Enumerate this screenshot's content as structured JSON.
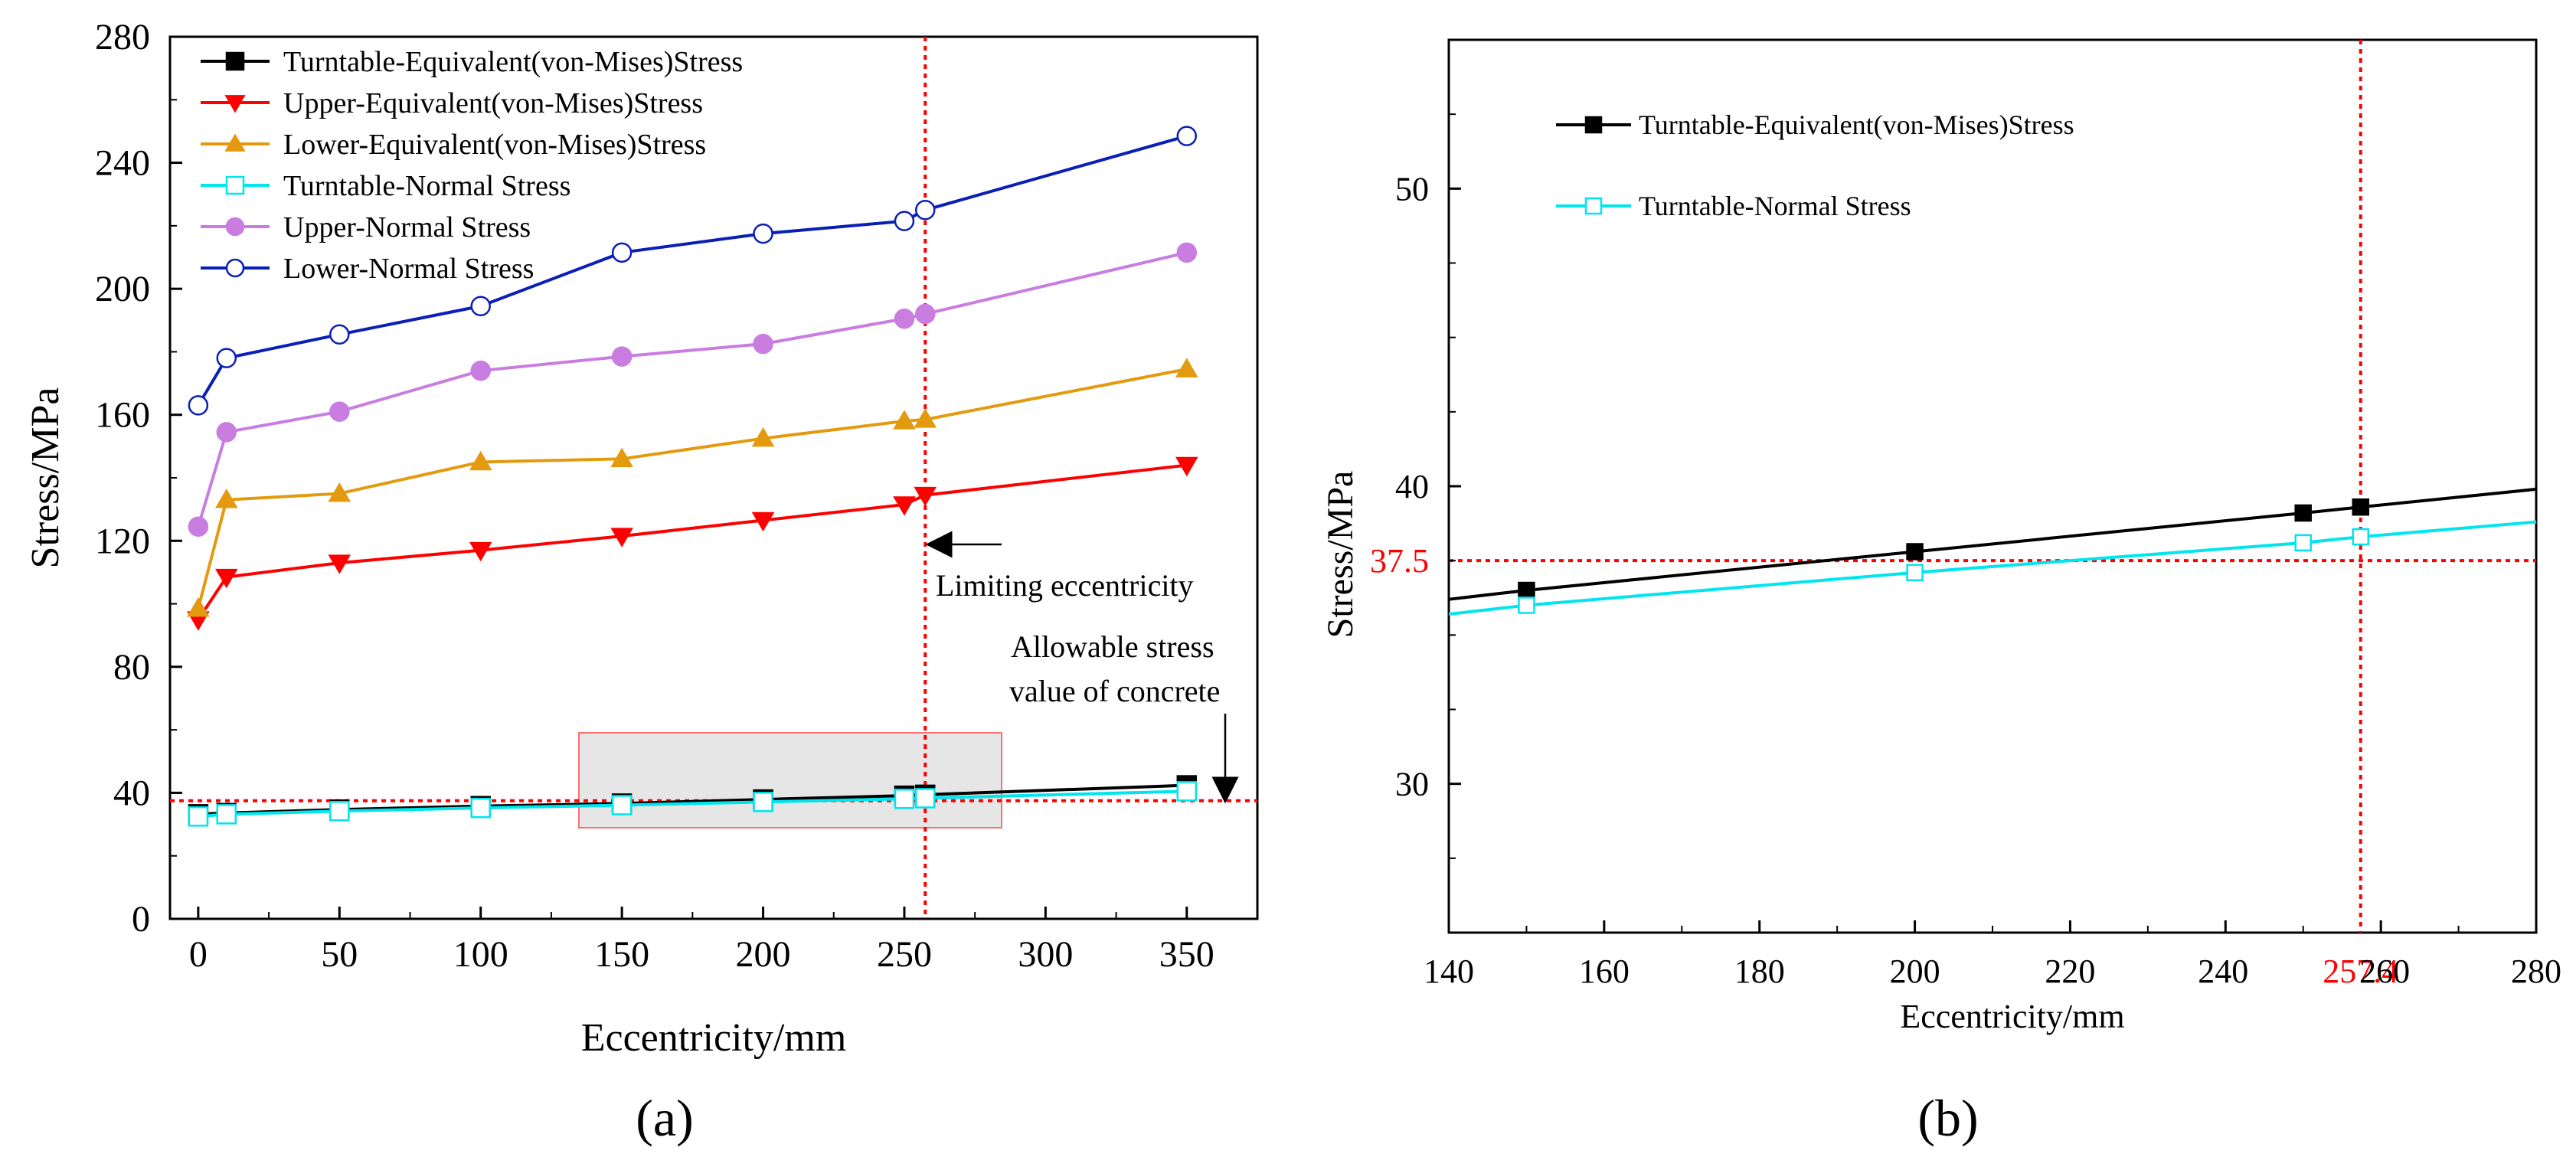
{
  "colors": {
    "turntable_equivalent": "#000000",
    "upper_equivalent": "#ff0000",
    "lower_equivalent": "#e39a0f",
    "turntable_normal": "#00e5ee",
    "upper_normal": "#c97de0",
    "lower_normal": "#0a1fb5",
    "reference_line": "#ff0000",
    "highlight_box_fill": "#dcdcdc",
    "highlight_box_stroke": "#ff7070"
  },
  "chart_data": [
    {
      "panel_label": "(a)",
      "type": "line",
      "xlabel": "Eccentricity/mm",
      "ylabel": "Stress/MPa",
      "xlim": [
        -10,
        375
      ],
      "ylim": [
        0,
        280
      ],
      "xticks": [
        0,
        50,
        100,
        150,
        200,
        250,
        300,
        350
      ],
      "xtick_labels": [
        "0",
        "50",
        "100",
        "150",
        "200",
        "250",
        "300",
        "350"
      ],
      "yticks": [
        0,
        40,
        80,
        120,
        160,
        200,
        240,
        280
      ],
      "ytick_labels": [
        "0",
        "40",
        "80",
        "120",
        "160",
        "200",
        "240",
        "280"
      ],
      "legend_position": "top-left",
      "series": [
        {
          "name": "Turntable-Equivalent(von-Mises)Stress",
          "marker": "filled-square",
          "color_key": "turntable_equivalent",
          "x": [
            0,
            10,
            50,
            100,
            150,
            200,
            250,
            257.4,
            350
          ],
          "y": [
            33.2,
            33.6,
            34.7,
            35.8,
            36.6,
            37.9,
            39.1,
            39.4,
            42.4
          ]
        },
        {
          "name": "Upper-Equivalent(von-Mises)Stress",
          "marker": "filled-triangle-down",
          "color_key": "upper_equivalent",
          "x": [
            0,
            10,
            50,
            100,
            150,
            200,
            250,
            257.4,
            350
          ],
          "y": [
            95,
            108.5,
            113,
            117,
            121.5,
            126.5,
            131.5,
            134.5,
            144
          ]
        },
        {
          "name": "Lower-Equivalent(von-Mises)Stress",
          "marker": "filled-triangle-up",
          "color_key": "lower_equivalent",
          "x": [
            0,
            10,
            50,
            100,
            150,
            200,
            250,
            257.4,
            350
          ],
          "y": [
            98.5,
            133,
            135,
            145,
            146,
            152.5,
            158,
            158.5,
            174.5
          ]
        },
        {
          "name": "Turntable-Normal Stress",
          "marker": "open-square",
          "color_key": "turntable_normal",
          "x": [
            0,
            10,
            50,
            100,
            150,
            200,
            250,
            257.4,
            350
          ],
          "y": [
            32.5,
            33.2,
            34.2,
            35.2,
            36.1,
            37.1,
            38.1,
            38.3,
            40.5
          ]
        },
        {
          "name": "Upper-Normal Stress",
          "marker": "filled-circle",
          "color_key": "upper_normal",
          "x": [
            0,
            10,
            50,
            100,
            150,
            200,
            250,
            257.4,
            350
          ],
          "y": [
            124.5,
            154.5,
            161,
            174,
            178.5,
            182.5,
            190.5,
            192,
            211.5
          ]
        },
        {
          "name": "Lower-Normal Stress",
          "marker": "open-circle",
          "color_key": "lower_normal",
          "x": [
            0,
            10,
            50,
            100,
            150,
            200,
            250,
            257.4,
            350
          ],
          "y": [
            163,
            178,
            185.5,
            194.5,
            211.5,
            217.5,
            221.5,
            225,
            248.5
          ]
        }
      ],
      "reference_lines": {
        "horizontal_y": 37.5,
        "vertical_x": 257.4
      },
      "highlight_box": {
        "x_range": [
          135,
          285
        ],
        "y_range": [
          29,
          58
        ]
      },
      "annotations": [
        {
          "text": "Limiting eccentricity",
          "arrow_x": 257.4,
          "arrow_y": 119
        },
        {
          "text": "Allowable stress",
          "arrow_x": 365,
          "arrow_y": 37.5
        },
        {
          "text": "value of concrete",
          "arrow_x": 365,
          "arrow_y": 37.5
        }
      ]
    },
    {
      "panel_label": "(b)",
      "type": "line",
      "xlabel": "Eccentricity/mm",
      "ylabel": "Stress/MPa",
      "xlim": [
        140,
        280
      ],
      "ylim": [
        25,
        55
      ],
      "xticks": [
        140,
        160,
        180,
        200,
        220,
        240,
        260,
        280
      ],
      "xtick_labels": [
        "140",
        "160",
        "180",
        "200",
        "220",
        "240",
        "260",
        "280"
      ],
      "yticks": [
        30,
        40,
        50
      ],
      "ytick_labels": [
        "30",
        "40",
        "50"
      ],
      "legend_position": "top-left",
      "series": [
        {
          "name": "Turntable-Equivalent(von-Mises)Stress",
          "marker": "filled-square",
          "color_key": "turntable_equivalent",
          "x": [
            140,
            150,
            200,
            250,
            257.4,
            280
          ],
          "y": [
            36.2,
            36.5,
            37.8,
            39.1,
            39.3,
            39.9
          ]
        },
        {
          "name": "Turntable-Normal Stress",
          "marker": "open-square",
          "color_key": "turntable_normal",
          "x": [
            140,
            150,
            200,
            250,
            257.4,
            280
          ],
          "y": [
            35.7,
            36.0,
            37.1,
            38.1,
            38.3,
            38.8
          ]
        }
      ],
      "reference_lines": {
        "horizontal_y": 37.5,
        "horizontal_label": "37.5",
        "vertical_x": 257.4,
        "vertical_label": "257.4"
      }
    }
  ]
}
